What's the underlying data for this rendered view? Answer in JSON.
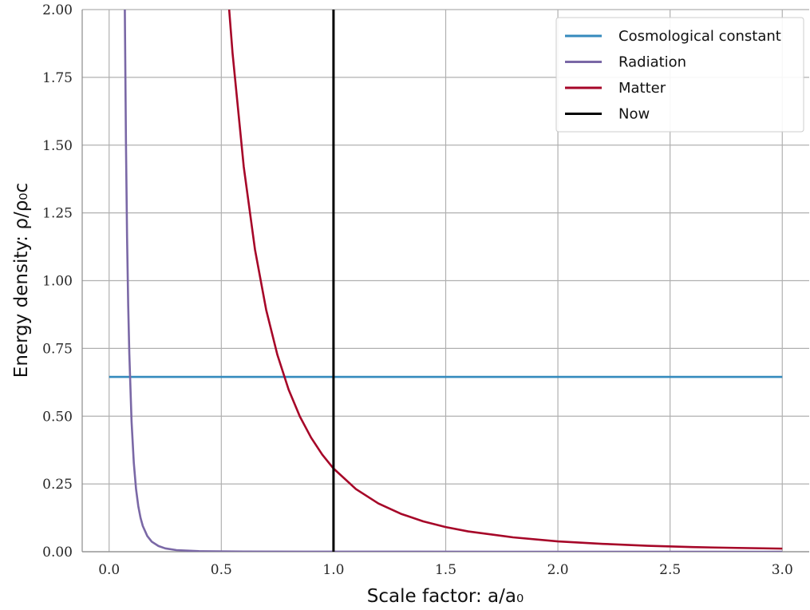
{
  "chart_data": {
    "type": "line",
    "title": "",
    "xlabel": "Scale factor: a/a₀",
    "ylabel": "Energy density: ρ/ρ₀c",
    "xlim": [
      -0.12,
      3.12
    ],
    "ylim": [
      0,
      2.0
    ],
    "x_ticks": [
      0.0,
      0.5,
      1.0,
      1.5,
      2.0,
      2.5,
      3.0
    ],
    "y_ticks": [
      0.0,
      0.25,
      0.5,
      0.75,
      1.0,
      1.25,
      1.5,
      1.75,
      2.0
    ],
    "x_tick_labels": [
      "0.0",
      "0.5",
      "1.0",
      "1.5",
      "2.0",
      "2.5",
      "3.0"
    ],
    "y_tick_labels": [
      "0.00",
      "0.25",
      "0.50",
      "0.75",
      "1.00",
      "1.25",
      "1.50",
      "1.75",
      "2.00"
    ],
    "grid": true,
    "legend_position": "top-right",
    "series": [
      {
        "name": "Cosmological constant",
        "color": "#348abd",
        "x": [
          0.0,
          3.0
        ],
        "y": [
          0.645,
          0.645
        ]
      },
      {
        "name": "Radiation",
        "color": "#7a68a6",
        "x": [
          0.07,
          0.075,
          0.08,
          0.085,
          0.09,
          0.1,
          0.11,
          0.12,
          0.13,
          0.14,
          0.15,
          0.17,
          0.19,
          0.22,
          0.25,
          0.3,
          0.4,
          0.6,
          1.0,
          2.0,
          3.0
        ],
        "y": [
          2.0,
          1.51,
          1.16,
          0.91,
          0.73,
          0.48,
          0.328,
          0.231,
          0.168,
          0.125,
          0.095,
          0.058,
          0.037,
          0.021,
          0.0123,
          0.0059,
          0.0019,
          0.0004,
          5e-05,
          3e-06,
          6e-07
        ]
      },
      {
        "name": "Matter",
        "color": "#a60628",
        "x": [
          0.535,
          0.55,
          0.6,
          0.65,
          0.7,
          0.75,
          0.8,
          0.85,
          0.9,
          0.95,
          1.0,
          1.1,
          1.2,
          1.3,
          1.4,
          1.5,
          1.6,
          1.8,
          2.0,
          2.2,
          2.4,
          2.6,
          2.8,
          3.0
        ],
        "y": [
          2.0,
          1.84,
          1.42,
          1.115,
          0.892,
          0.726,
          0.598,
          0.499,
          0.421,
          0.358,
          0.307,
          0.231,
          0.178,
          0.14,
          0.112,
          0.091,
          0.075,
          0.053,
          0.038,
          0.029,
          0.022,
          0.017,
          0.014,
          0.0114
        ]
      },
      {
        "name": "Now",
        "color": "#000000",
        "x": [
          1.0,
          1.0
        ],
        "y": [
          0.0,
          2.0
        ]
      }
    ]
  }
}
